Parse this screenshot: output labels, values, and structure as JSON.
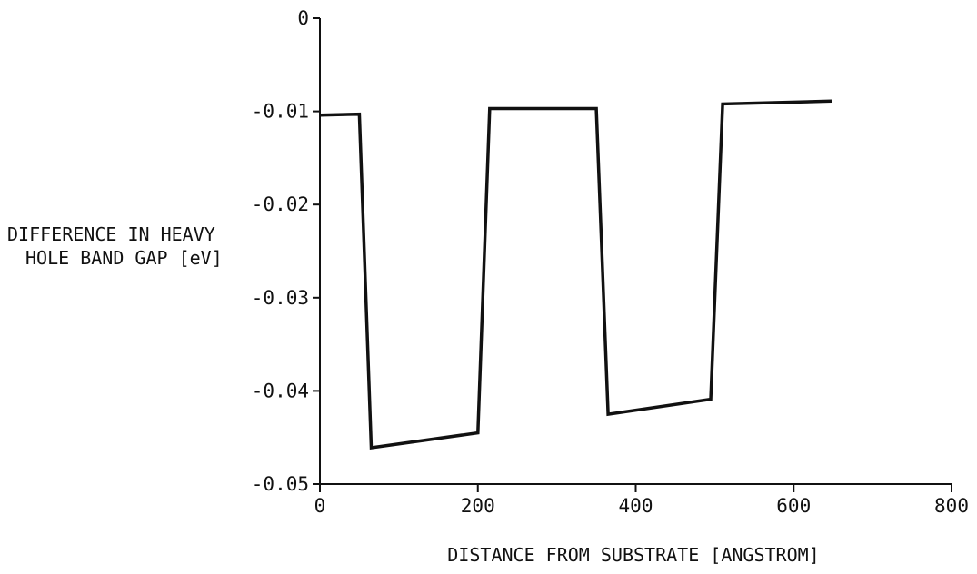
{
  "chart_data": {
    "type": "line",
    "title": "",
    "xlabel": "DISTANCE FROM SUBSTRATE [ANGSTROM]",
    "ylabel_lines": [
      "DIFFERENCE IN HEAVY",
      "HOLE BAND GAP [eV]"
    ],
    "xlim": [
      0,
      800
    ],
    "ylim": [
      -0.05,
      0
    ],
    "xticks": [
      0,
      200,
      400,
      600,
      800
    ],
    "xtick_labels": [
      "0",
      "200",
      "400",
      "600",
      "800"
    ],
    "yticks": [
      0,
      -0.01,
      -0.02,
      -0.03,
      -0.04,
      -0.05
    ],
    "ytick_labels": [
      "0",
      "-0.01",
      "-0.02",
      "-0.03",
      "-0.04",
      "-0.05"
    ],
    "grid": false,
    "line_color": "#111111",
    "series": [
      {
        "x": [
          0,
          50,
          65,
          200,
          215,
          350,
          365,
          495,
          510,
          648
        ],
        "y": [
          -0.0104,
          -0.0103,
          -0.0461,
          -0.0445,
          -0.0097,
          -0.0097,
          -0.0425,
          -0.0409,
          -0.0092,
          -0.0089
        ]
      }
    ]
  }
}
